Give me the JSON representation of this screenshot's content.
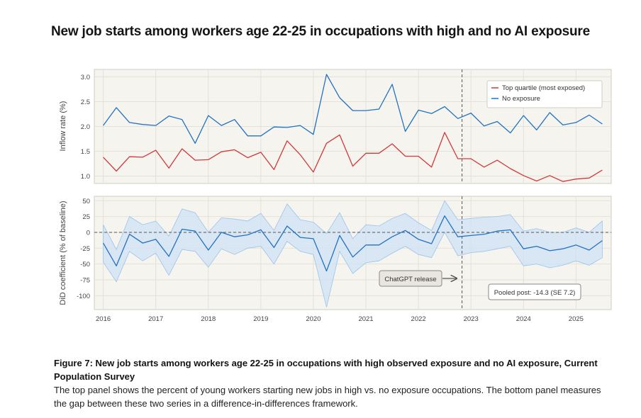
{
  "title": "New job starts among workers age 22-25 in occupations with high and no AI exposure",
  "caption": {
    "figure_title": "Figure 7: New job starts among workers age 22-25 in occupations with high observed exposure and no AI exposure, Current Population Survey",
    "description": "The top panel shows the percent of young workers starting new jobs in high vs. no exposure occupations. The bottom panel measures the gap between these two series in a difference-in-differences framework."
  },
  "chart_data": [
    {
      "type": "line",
      "ylabel": "Inflow rate (%)",
      "ylim": [
        0.85,
        3.15
      ],
      "yticks": [
        1.0,
        1.5,
        2.0,
        2.5,
        3.0
      ],
      "ytick_labels": [
        "1.0",
        "1.5",
        "2.0",
        "2.5",
        "3.0"
      ],
      "legend": "top-right",
      "grid": true,
      "x": [
        2016.0,
        2016.25,
        2016.5,
        2016.75,
        2017.0,
        2017.25,
        2017.5,
        2017.75,
        2018.0,
        2018.25,
        2018.5,
        2018.75,
        2019.0,
        2019.25,
        2019.5,
        2019.75,
        2020.0,
        2020.25,
        2020.5,
        2020.75,
        2021.0,
        2021.25,
        2021.5,
        2021.75,
        2022.0,
        2022.25,
        2022.5,
        2022.75,
        2023.0,
        2023.25,
        2023.5,
        2023.75,
        2024.0,
        2024.25,
        2024.5,
        2024.75,
        2025.0,
        2025.25,
        2025.5
      ],
      "series": [
        {
          "name": "Top quartile (most exposed)",
          "color": "#d1393b",
          "values": [
            1.38,
            1.1,
            1.39,
            1.38,
            1.52,
            1.16,
            1.55,
            1.32,
            1.33,
            1.49,
            1.53,
            1.37,
            1.48,
            1.13,
            1.71,
            1.43,
            1.08,
            1.66,
            1.83,
            1.2,
            1.46,
            1.46,
            1.65,
            1.4,
            1.4,
            1.18,
            1.88,
            1.35,
            1.35,
            1.18,
            1.32,
            1.15,
            1.01,
            0.9,
            1.01,
            0.89,
            0.94,
            0.96,
            1.12
          ]
        },
        {
          "name": "No exposure",
          "color": "#2272c3",
          "values": [
            2.02,
            2.38,
            2.08,
            2.04,
            2.02,
            2.21,
            2.14,
            1.66,
            2.22,
            2.02,
            2.14,
            1.81,
            1.81,
            1.99,
            1.98,
            2.02,
            1.84,
            3.05,
            2.58,
            2.32,
            2.32,
            2.35,
            2.85,
            1.9,
            2.33,
            2.26,
            2.4,
            2.16,
            2.27,
            2.01,
            2.1,
            1.87,
            2.22,
            1.93,
            2.28,
            2.03,
            2.08,
            2.23,
            2.05
          ]
        }
      ],
      "vline": {
        "x": 2022.83
      }
    },
    {
      "type": "line",
      "ylabel": "DiD coefficient (% of baseline)",
      "xlabel": "",
      "ylim": [
        -122,
        57
      ],
      "yticks": [
        50,
        25,
        0,
        -25,
        -50,
        -75,
        -100
      ],
      "ytick_labels": [
        "50",
        "25",
        "0",
        "-25",
        "-50",
        "-75",
        "-100"
      ],
      "xticks": [
        2016,
        2017,
        2018,
        2019,
        2020,
        2021,
        2022,
        2023,
        2024,
        2025
      ],
      "xtick_labels": [
        "2016",
        "2017",
        "2018",
        "2019",
        "2020",
        "2021",
        "2022",
        "2023",
        "2024",
        "2025"
      ],
      "xlim": [
        2015.83,
        2025.67
      ],
      "grid": true,
      "x": [
        2016.0,
        2016.25,
        2016.5,
        2016.75,
        2017.0,
        2017.25,
        2017.5,
        2017.75,
        2018.0,
        2018.25,
        2018.5,
        2018.75,
        2019.0,
        2019.25,
        2019.5,
        2019.75,
        2020.0,
        2020.25,
        2020.5,
        2020.75,
        2021.0,
        2021.25,
        2021.5,
        2021.75,
        2022.0,
        2022.25,
        2022.5,
        2022.75,
        2023.0,
        2023.25,
        2023.5,
        2023.75,
        2024.0,
        2024.25,
        2024.5,
        2024.75,
        2025.0,
        2025.25,
        2025.5
      ],
      "series": [
        {
          "name": "",
          "color": "#2272c3",
          "values": [
            -17,
            -53,
            -3,
            -17,
            -11,
            -38,
            5,
            2,
            -28,
            0,
            -7,
            -4,
            4,
            -24,
            10,
            -8,
            -10,
            -61,
            -5,
            -39,
            -20,
            -20,
            -7,
            3,
            -11,
            -18,
            26,
            -7,
            -5,
            -3,
            2,
            4,
            -26,
            -22,
            -29,
            -26,
            -20,
            -28,
            -13
          ],
          "lower": [
            -47,
            -78,
            -30,
            -45,
            -33,
            -68,
            -27,
            -30,
            -55,
            -26,
            -35,
            -25,
            -22,
            -50,
            -14,
            -30,
            -35,
            -118,
            -30,
            -65,
            -48,
            -45,
            -33,
            -22,
            -35,
            -40,
            0,
            -37,
            -32,
            -30,
            -26,
            -22,
            -53,
            -50,
            -56,
            -52,
            -45,
            -52,
            -40
          ],
          "upper": [
            12,
            -27,
            25,
            12,
            18,
            -6,
            37,
            31,
            0,
            23,
            21,
            18,
            30,
            3,
            45,
            20,
            16,
            -2,
            31,
            -10,
            12,
            10,
            22,
            30,
            15,
            3,
            50,
            20,
            22,
            24,
            25,
            28,
            2,
            6,
            0,
            0,
            7,
            0,
            18
          ]
        }
      ],
      "zero_line": true,
      "vline": {
        "x": 2022.83,
        "label": "ChatGPT release"
      },
      "annotation": "Pooled post: -14.3 (SE 7.2)"
    }
  ]
}
